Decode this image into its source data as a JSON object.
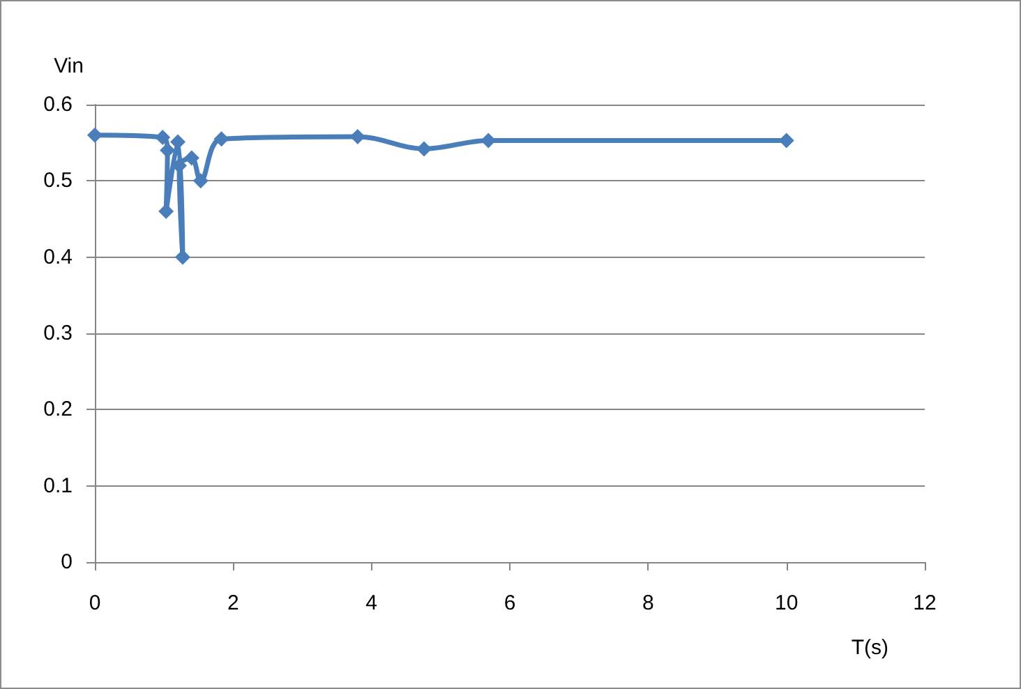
{
  "chart_data": {
    "type": "line",
    "xlabel": "T(s)",
    "ylabel": "Vin",
    "x": [
      0,
      0.98,
      1.05,
      1.03,
      1.2,
      1.27,
      1.22,
      1.4,
      1.53,
      1.83,
      3.8,
      4.76,
      5.69,
      10
    ],
    "values": [
      0.56,
      0.557,
      0.54,
      0.46,
      0.551,
      0.4,
      0.52,
      0.53,
      0.5,
      0.555,
      0.558,
      0.542,
      0.553,
      0.553
    ],
    "color": "#4a7ebb",
    "xlim": [
      0,
      12
    ],
    "xticks": [
      0,
      2,
      4,
      6,
      8,
      10,
      12
    ],
    "ylim": [
      0,
      0.6
    ],
    "yticks": [
      0,
      0.1,
      0.2,
      0.3,
      0.4,
      0.5,
      0.6
    ],
    "grid": "y",
    "marker": "diamond",
    "line_style": "solid"
  }
}
